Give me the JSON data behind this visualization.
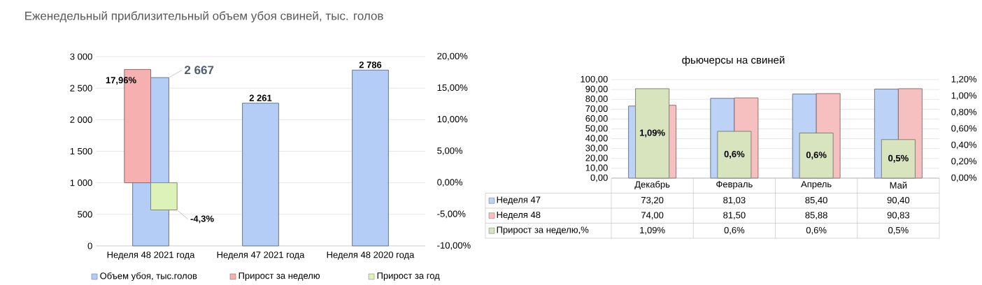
{
  "chart_data": [
    {
      "type": "bar",
      "title": "Еженедельный приблизительный объем убоя свиней, тыс. голов",
      "categories": [
        "Неделя 48 2021 года",
        "Неделя 47 2021 года",
        "Неделя 48 2020 года"
      ],
      "series": [
        {
          "name": "Объем убоя, тыс.голов",
          "color": "#b4cdf7",
          "values": [
            2667,
            2261,
            2786
          ],
          "value_labels": [
            "2 667",
            "2 261",
            "2 786"
          ]
        },
        {
          "name": "Прирост за неделю",
          "color": "#f6b0b0",
          "axis": "y2",
          "values": [
            17.96,
            null,
            null
          ],
          "value_labels": [
            "17,96%",
            null,
            null
          ]
        },
        {
          "name": "Прирост за год",
          "color": "#dcf2b8",
          "axis": "y2",
          "values": [
            -4.3,
            null,
            null
          ],
          "value_labels": [
            "-4,3%",
            null,
            null
          ]
        }
      ],
      "ylim": [
        0,
        3000
      ],
      "yticks": [
        0,
        500,
        {
          "value": 1000,
          "label": "1 000"
        },
        {
          "value": 1500,
          "label": "1 500"
        },
        {
          "value": 2000,
          "label": "2 000"
        },
        {
          "value": 2500,
          "label": "2 500"
        },
        {
          "value": 3000,
          "label": "3 000"
        }
      ],
      "y2lim": [
        -10,
        20
      ],
      "y2ticks": [
        {
          "value": -10,
          "label": "-10,00%"
        },
        {
          "value": -5,
          "label": "-5,00%"
        },
        {
          "value": 0,
          "label": "0,00%"
        },
        {
          "value": 5,
          "label": "5,00%"
        },
        {
          "value": 10,
          "label": "10,00%"
        },
        {
          "value": 15,
          "label": "15,00%"
        },
        {
          "value": 20,
          "label": "20,00%"
        }
      ],
      "grid": "y",
      "legend": "bottom"
    },
    {
      "type": "bar",
      "title": "фьючерсы на свиней",
      "categories": [
        "Декабрь",
        "Февраль",
        "Апрель",
        "Май"
      ],
      "series": [
        {
          "name": "Неделя 47",
          "color": "#bcd2f7",
          "values": [
            73.2,
            81.03,
            85.4,
            90.4
          ],
          "value_labels": [
            "73,20",
            "81,03",
            "85,40",
            "90,40"
          ]
        },
        {
          "name": "Неделя 48",
          "color": "#f7c0c0",
          "values": [
            74.0,
            81.5,
            85.88,
            90.83
          ],
          "value_labels": [
            "74,00",
            "81,50",
            "85,88",
            "90,83"
          ]
        },
        {
          "name": "Прирост за неделю,%",
          "color": "#d7e4bd",
          "axis": "y2",
          "values": [
            1.09,
            0.57,
            0.55,
            0.47
          ],
          "value_labels": [
            "1,09%",
            "0,6%",
            "0,6%",
            "0,5%"
          ]
        }
      ],
      "ylim": [
        0,
        100
      ],
      "yticks": [
        {
          "value": 0,
          "label": "0,00"
        },
        {
          "value": 10,
          "label": "10,00"
        },
        {
          "value": 20,
          "label": "20,00"
        },
        {
          "value": 30,
          "label": "30,00"
        },
        {
          "value": 40,
          "label": "40,00"
        },
        {
          "value": 50,
          "label": "50,00"
        },
        {
          "value": 60,
          "label": "60,00"
        },
        {
          "value": 70,
          "label": "70,00"
        },
        {
          "value": 80,
          "label": "80,00"
        },
        {
          "value": 90,
          "label": "90,00"
        },
        {
          "value": 100,
          "label": "100,00"
        }
      ],
      "y2lim": [
        0,
        1.2
      ],
      "y2ticks": [
        {
          "value": 0,
          "label": "0,00%"
        },
        {
          "value": 0.2,
          "label": "0,20%"
        },
        {
          "value": 0.4,
          "label": "0,40%"
        },
        {
          "value": 0.6,
          "label": "0,60%"
        },
        {
          "value": 0.8,
          "label": "0,80%"
        },
        {
          "value": 1.0,
          "label": "1,00%"
        },
        {
          "value": 1.2,
          "label": "1,20%"
        }
      ],
      "grid": "y",
      "legend": "bottom"
    }
  ]
}
